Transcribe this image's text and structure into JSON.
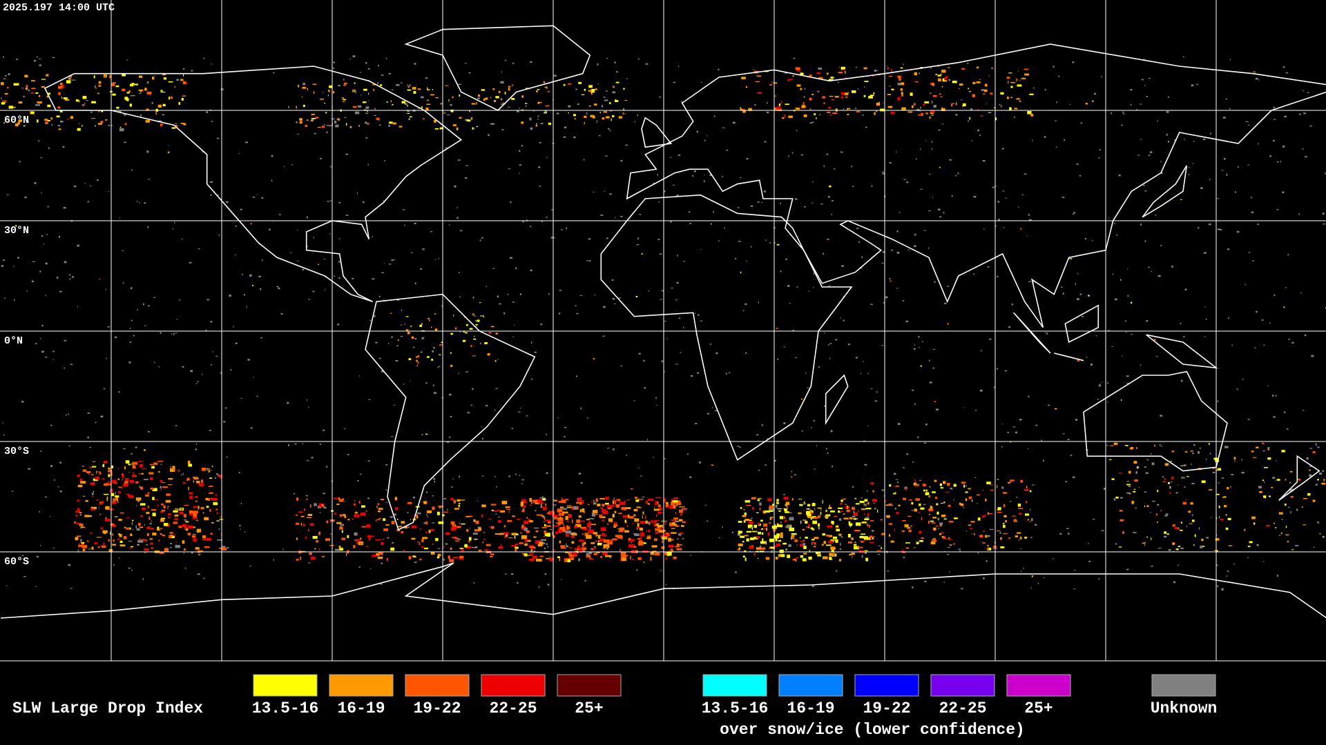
{
  "header": {
    "timestamp": "2025.197 14:00 UTC"
  },
  "map": {
    "latitude_labels": [
      "60°N",
      "30°N",
      "0°N",
      "30°S",
      "60°S"
    ]
  },
  "legend": {
    "title": "SLW Large Drop Index",
    "items": [
      {
        "label": "13.5-16",
        "color": "#ffff00"
      },
      {
        "label": "16-19",
        "color": "#ff9900"
      },
      {
        "label": "19-22",
        "color": "#ff5500"
      },
      {
        "label": "22-25",
        "color": "#ee0000"
      },
      {
        "label": "25+",
        "color": "#660000"
      }
    ],
    "snow_ice_items": [
      {
        "label": "13.5-16",
        "color": "#00ffff"
      },
      {
        "label": "16-19",
        "color": "#0080ff"
      },
      {
        "label": "19-22",
        "color": "#0000ff"
      },
      {
        "label": "22-25",
        "color": "#7700ee"
      },
      {
        "label": "25+",
        "color": "#cc00cc"
      }
    ],
    "snow_ice_note": "over snow/ice (lower confidence)",
    "unknown": {
      "label": "Unknown",
      "color": "#808080"
    }
  }
}
